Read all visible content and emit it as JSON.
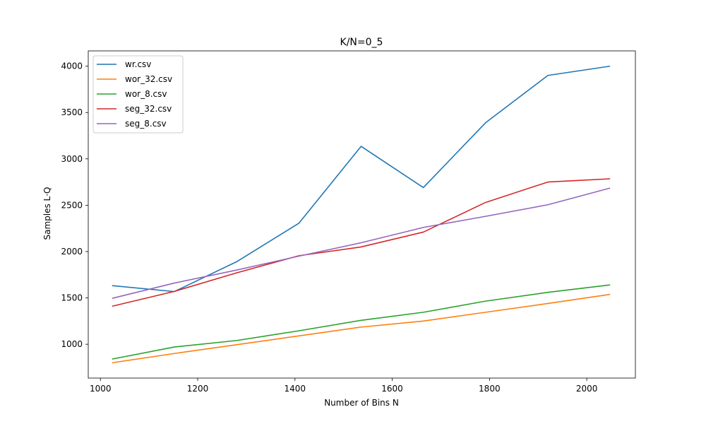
{
  "chart_data": {
    "type": "line",
    "title": "K/N=0_5",
    "xlabel": "Number of Bins N",
    "ylabel": "Samples  L·Q",
    "xlim": [
      975,
      2100
    ],
    "ylim": [
      635,
      4165
    ],
    "xticks": [
      1000,
      1200,
      1400,
      1600,
      1800,
      2000
    ],
    "yticks": [
      1000,
      1500,
      2000,
      2500,
      3000,
      3500,
      4000
    ],
    "grid": false,
    "legend_position": "top-left",
    "x": [
      1024,
      1152,
      1280,
      1408,
      1536,
      1664,
      1792,
      1920,
      2048
    ],
    "series": [
      {
        "name": "wr.csv",
        "color": "#1f77b4",
        "values": [
          1632,
          1568,
          1890,
          2305,
          3135,
          2690,
          3390,
          3900,
          4000
        ]
      },
      {
        "name": "wor_32.csv",
        "color": "#ff7f0e",
        "values": [
          800,
          900,
          995,
          1090,
          1185,
          1250,
          1345,
          1440,
          1538
        ]
      },
      {
        "name": "wor_8.csv",
        "color": "#2ca02c",
        "values": [
          840,
          970,
          1040,
          1145,
          1258,
          1345,
          1465,
          1560,
          1640
        ]
      },
      {
        "name": "seg_32.csv",
        "color": "#d62728",
        "values": [
          1410,
          1570,
          1770,
          1955,
          2050,
          2210,
          2530,
          2750,
          2785
        ]
      },
      {
        "name": "seg_8.csv",
        "color": "#9467bd",
        "values": [
          1495,
          1660,
          1800,
          1950,
          2095,
          2260,
          2380,
          2505,
          2685
        ]
      }
    ]
  }
}
